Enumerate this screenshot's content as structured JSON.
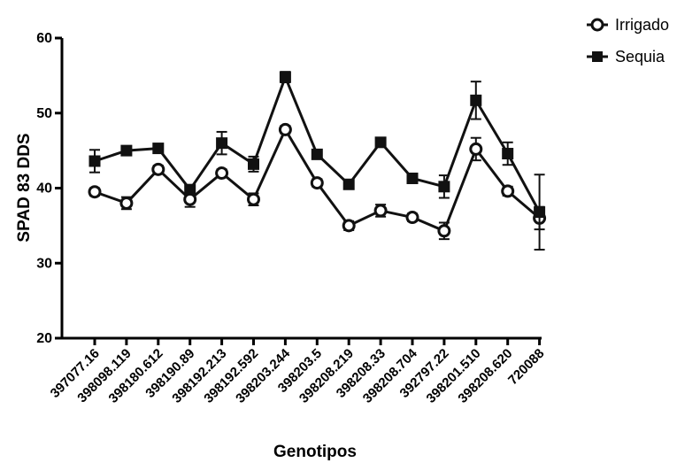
{
  "chart_data": {
    "type": "line",
    "xlabel": "Genotipos",
    "ylabel": "SPAD 83 DDS",
    "ylim": [
      20,
      60
    ],
    "yticks": [
      "20",
      "30",
      "40",
      "50",
      "60"
    ],
    "categories": [
      "397077.16",
      "398098.119",
      "398180.612",
      "398190.89",
      "398192.213",
      "398192.592",
      "398203.244",
      "398203.5",
      "398208.219",
      "398208.33",
      "398208.704",
      "392797.22",
      "398201.510",
      "398208.620",
      "720088"
    ],
    "series": [
      {
        "name": "Irrigado",
        "marker": "circle-open",
        "values": [
          39.5,
          38.0,
          42.5,
          38.5,
          42.0,
          38.5,
          47.8,
          40.7,
          35.0,
          37.0,
          36.1,
          34.3,
          45.2,
          39.6,
          36.0
        ],
        "errors": [
          0.5,
          0.8,
          0.5,
          1.0,
          0.5,
          0.8,
          0.5,
          0.5,
          0.6,
          0.8,
          0.5,
          1.1,
          1.5,
          0.6,
          1.5
        ]
      },
      {
        "name": "Sequia",
        "marker": "square-filled",
        "values": [
          43.6,
          45.0,
          45.3,
          39.8,
          46.0,
          43.2,
          54.8,
          44.5,
          40.5,
          46.1,
          41.3,
          40.2,
          51.7,
          44.6,
          36.8
        ],
        "errors": [
          1.5,
          0.6,
          0.5,
          0.6,
          1.5,
          1.0,
          0.7,
          0.5,
          0.5,
          0.5,
          0.5,
          1.5,
          2.5,
          1.5,
          5.0
        ]
      }
    ],
    "legend_position": "top-right",
    "colors": {
      "line": "#111111",
      "marker_fill": "#111111",
      "marker_open_fill": "#ffffff"
    }
  }
}
